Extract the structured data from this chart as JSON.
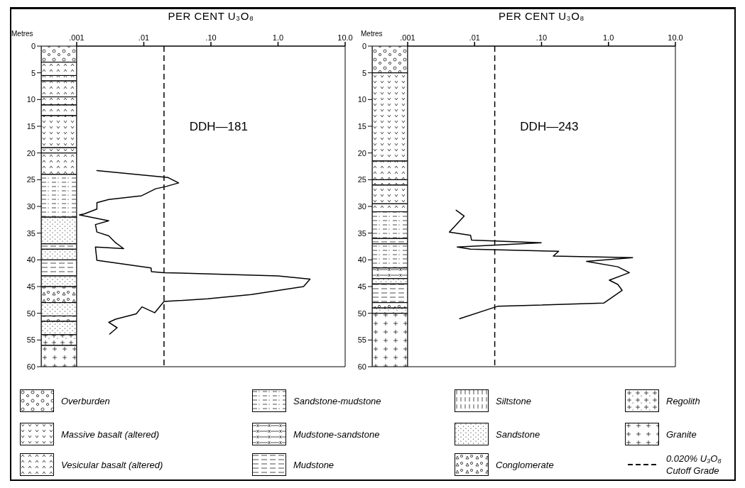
{
  "chart_data": [
    {
      "type": "line",
      "title": "DDH—181",
      "xlabel": "PER CENT U₃O₈",
      "ylabel": "Metres",
      "log": "x",
      "xlim": [
        0.001,
        10
      ],
      "xticks": [
        {
          "value": 0.001,
          "label": ".001"
        },
        {
          "value": 0.01,
          "label": ".01"
        },
        {
          "value": 0.1,
          "label": ".10"
        },
        {
          "value": 1,
          "label": "1.0"
        },
        {
          "value": 10,
          "label": "10.0"
        }
      ],
      "ylim": [
        60,
        0
      ],
      "yticks": [
        0,
        5,
        10,
        15,
        20,
        25,
        30,
        35,
        40,
        45,
        50,
        55,
        60
      ],
      "series": [
        {
          "color": "#000000",
          "x": [
            0.002,
            0.023,
            0.033,
            0.021,
            0.015,
            0.0093,
            0.003,
            0.002,
            0.002,
            0.0013,
            0.0011,
            0.003,
            0.0019,
            0.002,
            0.003,
            0.0038,
            0.005,
            0.0019,
            0.002,
            0.0128,
            0.013,
            0.02,
            1.0,
            3.0,
            2.4,
            0.4,
            0.089,
            0.02,
            0.0145,
            0.0094,
            0.0077,
            0.0038,
            0.003,
            0.004,
            0.0031
          ],
          "values": [
            23.3,
            24.6,
            25.6,
            26.3,
            26.7,
            28,
            28.7,
            29.3,
            30.5,
            31.4,
            31.6,
            32.7,
            33.4,
            34.8,
            35.5,
            36.8,
            37.9,
            37.6,
            40.1,
            41.5,
            42.2,
            42.4,
            43,
            43.6,
            45,
            46.5,
            47.3,
            47.8,
            49.9,
            48.8,
            50.1,
            51.1,
            51.7,
            52.7,
            53.9
          ]
        }
      ],
      "ref_lines": [
        {
          "axis": "x",
          "value": 0.02,
          "line_style": "dashed",
          "color": "#000000"
        }
      ]
    },
    {
      "type": "line",
      "title": "DDH—243",
      "xlabel": "PER CENT U₃O₈",
      "ylabel": "Metres",
      "log": "x",
      "xlim": [
        0.001,
        10
      ],
      "xticks": [
        {
          "value": 0.001,
          "label": ".001"
        },
        {
          "value": 0.01,
          "label": ".01"
        },
        {
          "value": 0.1,
          "label": ".10"
        },
        {
          "value": 1,
          "label": "1.0"
        },
        {
          "value": 10,
          "label": "10.0"
        }
      ],
      "ylim": [
        60,
        0
      ],
      "yticks": [
        0,
        5,
        10,
        15,
        20,
        25,
        30,
        35,
        40,
        45,
        50,
        55,
        60
      ],
      "series": [
        {
          "color": "#000000",
          "x": [
            0.0053,
            0.007,
            0.0042,
            0.0087,
            0.009,
            0.099,
            0.0055,
            0.0087,
            0.18,
            0.15,
            2.3,
            0.47,
            1.38,
            2.05,
            1.03,
            1.38,
            1.6,
            0.85,
            0.022,
            0.006
          ],
          "values": [
            30.7,
            31.8,
            34.8,
            35.4,
            36.3,
            36.8,
            37.6,
            38,
            38.4,
            39.3,
            39.6,
            40.3,
            41.3,
            42.4,
            43.8,
            44.6,
            45.7,
            48.1,
            48.7,
            51
          ]
        }
      ],
      "ref_lines": [
        {
          "axis": "x",
          "value": 0.02,
          "line_style": "dashed",
          "color": "#000000"
        }
      ]
    },
    {
      "type": "other",
      "annotations": [
        "Overburden",
        "Massive basalt (altered)",
        "Vesicular basalt (altered)",
        "Sandstone-mudstone",
        "Mudstone-sandstone",
        "Mudstone",
        "Siltstone",
        "Sandstone",
        "Conglomerate",
        "Regolith",
        "Granite",
        "0.020% U₃O₈ Cutoff Grade"
      ]
    }
  ]
}
